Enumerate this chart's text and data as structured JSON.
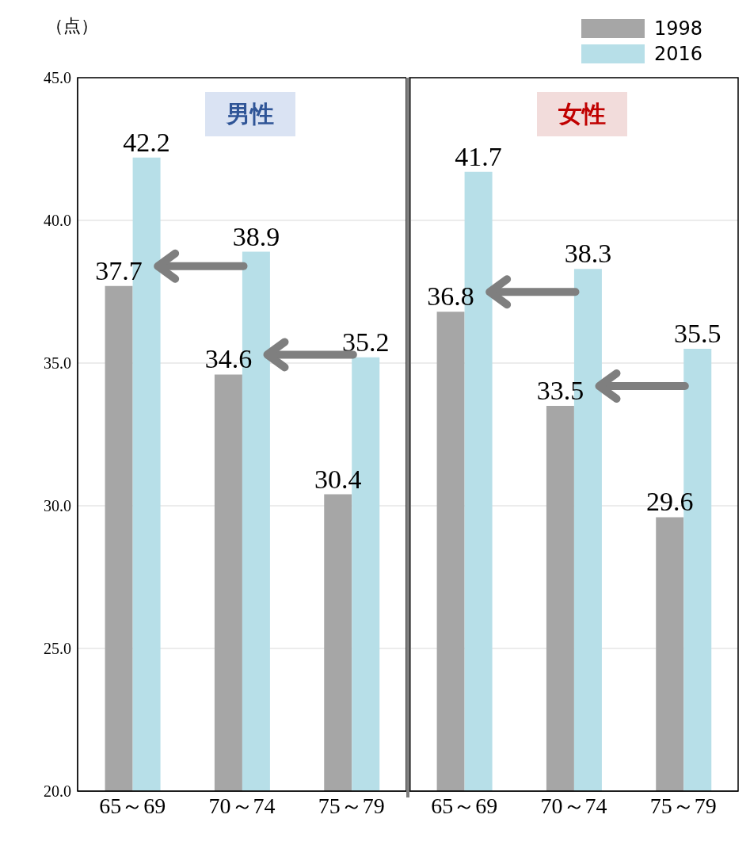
{
  "chart_data": [
    {
      "type": "bar",
      "title": "男性",
      "ylabel": "（点）",
      "categories": [
        "65～69",
        "70～74",
        "75～79"
      ],
      "series": [
        {
          "color": "#a6a6a6",
          "values": [
            37.7,
            34.6,
            30.4
          ]
        },
        {
          "color": "#b7dfe8",
          "values": [
            42.2,
            38.9,
            35.2
          ]
        }
      ],
      "ylim": [
        20,
        45
      ],
      "yticks": [
        {
          "value": 20,
          "label": "20.0"
        },
        {
          "value": 25,
          "label": "25.0"
        },
        {
          "value": 30,
          "label": "30.0"
        },
        {
          "value": 35,
          "label": "35.0"
        },
        {
          "value": 40,
          "label": "40.0"
        },
        {
          "value": 45,
          "label": "45.0"
        }
      ],
      "grid": "y",
      "data_labels": true
    },
    {
      "type": "bar",
      "title": "女性",
      "categories": [
        "65～69",
        "70～74",
        "75～79"
      ],
      "series": [
        {
          "name": "1998",
          "color": "#a6a6a6",
          "values": [
            36.8,
            33.5,
            29.6
          ]
        },
        {
          "name": "2016",
          "color": "#b7dfe8",
          "values": [
            41.7,
            38.3,
            35.5
          ]
        }
      ],
      "ylim": [
        20,
        45
      ],
      "yticks": [
        20,
        25,
        30,
        35,
        40,
        45
      ],
      "tick_labels": "x",
      "grid": "y",
      "legend": "top right",
      "data_labels": true
    }
  ]
}
